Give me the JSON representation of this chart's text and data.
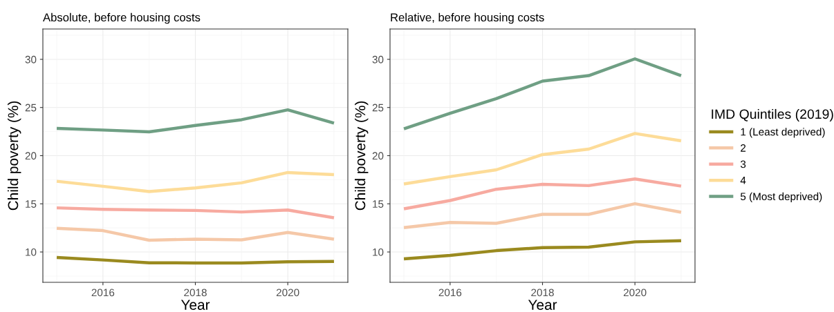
{
  "chart_data": [
    {
      "type": "line",
      "title": "Absolute, before housing costs",
      "xlabel": "Year",
      "ylabel": "Child poverty (%)",
      "x": [
        2015,
        2016,
        2017,
        2018,
        2019,
        2020,
        2021
      ],
      "series": [
        {
          "color": "#9a8a1f",
          "values": [
            9.43,
            9.17,
            8.88,
            8.86,
            8.86,
            8.98,
            9.02
          ]
        },
        {
          "color": "#f5c8a8",
          "values": [
            12.46,
            12.22,
            11.22,
            11.33,
            11.26,
            12.03,
            11.33
          ]
        },
        {
          "color": "#f7aaa0",
          "values": [
            14.58,
            14.43,
            14.36,
            14.31,
            14.15,
            14.36,
            13.55
          ]
        },
        {
          "color": "#fddc98",
          "values": [
            17.34,
            16.82,
            16.27,
            16.65,
            17.18,
            18.25,
            18.03
          ]
        },
        {
          "color": "#6f9f84",
          "values": [
            22.83,
            22.66,
            22.47,
            23.13,
            23.73,
            24.76,
            23.37
          ]
        }
      ],
      "xlim": [
        2014.7,
        2021.3
      ],
      "xticks": [
        2016,
        2018,
        2020
      ],
      "ylim": [
        6.85,
        33.15
      ],
      "yticks": [
        10,
        15,
        20,
        25,
        30
      ],
      "grid": true,
      "legend": false
    },
    {
      "type": "line",
      "title": "Relative, before housing costs",
      "xlabel": "Year",
      "ylabel": "Child poverty (%)",
      "legend_title": "IMD Quintiles (2019)",
      "x": [
        2015,
        2016,
        2017,
        2018,
        2019,
        2020,
        2021
      ],
      "series": [
        {
          "name": "1 (Least deprived)",
          "color": "#9a8a1f",
          "values": [
            9.28,
            9.64,
            10.14,
            10.45,
            10.5,
            11.05,
            11.17
          ]
        },
        {
          "name": "2",
          "color": "#f5c8a8",
          "values": [
            12.53,
            13.07,
            12.98,
            13.91,
            13.91,
            15.01,
            14.12
          ]
        },
        {
          "name": "3",
          "color": "#f7aaa0",
          "values": [
            14.48,
            15.34,
            16.51,
            17.03,
            16.89,
            17.58,
            16.84
          ]
        },
        {
          "name": "4",
          "color": "#fddc98",
          "values": [
            17.06,
            17.82,
            18.53,
            20.11,
            20.68,
            22.3,
            21.54
          ]
        },
        {
          "name": "5 (Most deprived)",
          "color": "#6f9f84",
          "values": [
            22.78,
            24.4,
            25.92,
            27.74,
            28.31,
            30.05,
            28.31
          ]
        }
      ],
      "xlim": [
        2014.7,
        2021.3
      ],
      "xticks": [
        2016,
        2018,
        2020
      ],
      "ylim": [
        6.85,
        33.15
      ],
      "yticks": [
        10,
        15,
        20,
        25,
        30
      ],
      "grid": true,
      "legend": "right"
    }
  ]
}
